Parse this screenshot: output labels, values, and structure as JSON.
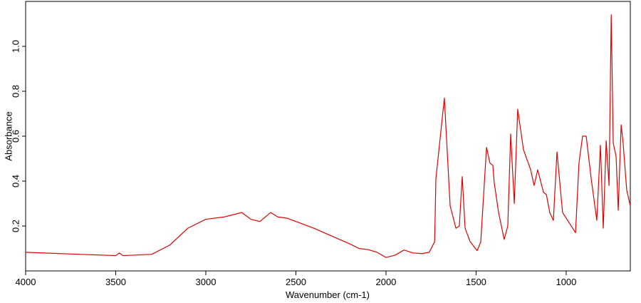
{
  "chart_data": {
    "type": "line",
    "xlabel": "Wavenumber (cm-1)",
    "ylabel": "Absorbance",
    "color": "#e00000",
    "x": [
      4000,
      3500,
      3480,
      3460,
      3300,
      3200,
      3100,
      3000,
      2900,
      2850,
      2800,
      2750,
      2700,
      2640,
      2600,
      2550,
      2500,
      2400,
      2300,
      2200,
      2150,
      2100,
      2050,
      2000,
      1950,
      1900,
      1850,
      1800,
      1760,
      1730,
      1723,
      1676,
      1644,
      1612,
      1593,
      1577,
      1561,
      1533,
      1494,
      1474,
      1442,
      1423,
      1407,
      1399,
      1375,
      1344,
      1324,
      1308,
      1288,
      1269,
      1237,
      1197,
      1178,
      1158,
      1126,
      1110,
      1091,
      1071,
      1051,
      1020,
      980,
      948,
      929,
      909,
      889,
      861,
      830,
      810,
      794,
      778,
      762,
      750,
      739,
      723,
      711,
      695,
      684,
      664,
      644
    ],
    "values": [
      0.083,
      0.068,
      0.08,
      0.068,
      0.074,
      0.115,
      0.19,
      0.23,
      0.24,
      0.25,
      0.26,
      0.23,
      0.22,
      0.26,
      0.24,
      0.235,
      0.22,
      0.19,
      0.155,
      0.12,
      0.1,
      0.095,
      0.083,
      0.06,
      0.07,
      0.093,
      0.08,
      0.077,
      0.083,
      0.13,
      0.41,
      0.77,
      0.29,
      0.19,
      0.2,
      0.42,
      0.19,
      0.13,
      0.09,
      0.13,
      0.55,
      0.48,
      0.47,
      0.39,
      0.26,
      0.14,
      0.2,
      0.61,
      0.3,
      0.72,
      0.54,
      0.45,
      0.38,
      0.45,
      0.35,
      0.34,
      0.26,
      0.225,
      0.53,
      0.26,
      0.21,
      0.17,
      0.48,
      0.6,
      0.6,
      0.41,
      0.225,
      0.56,
      0.19,
      0.58,
      0.38,
      1.14,
      0.57,
      0.51,
      0.27,
      0.65,
      0.57,
      0.36,
      0.29
    ],
    "xlim": [
      4000,
      644
    ],
    "xticks": [
      4000,
      3500,
      3000,
      2500,
      2000,
      1500,
      1000
    ],
    "ylim": [
      0,
      1.2
    ],
    "yticks": [
      0.2,
      0.4,
      0.6,
      0.8,
      {
        "value": 1,
        "label": "1.0"
      }
    ]
  }
}
